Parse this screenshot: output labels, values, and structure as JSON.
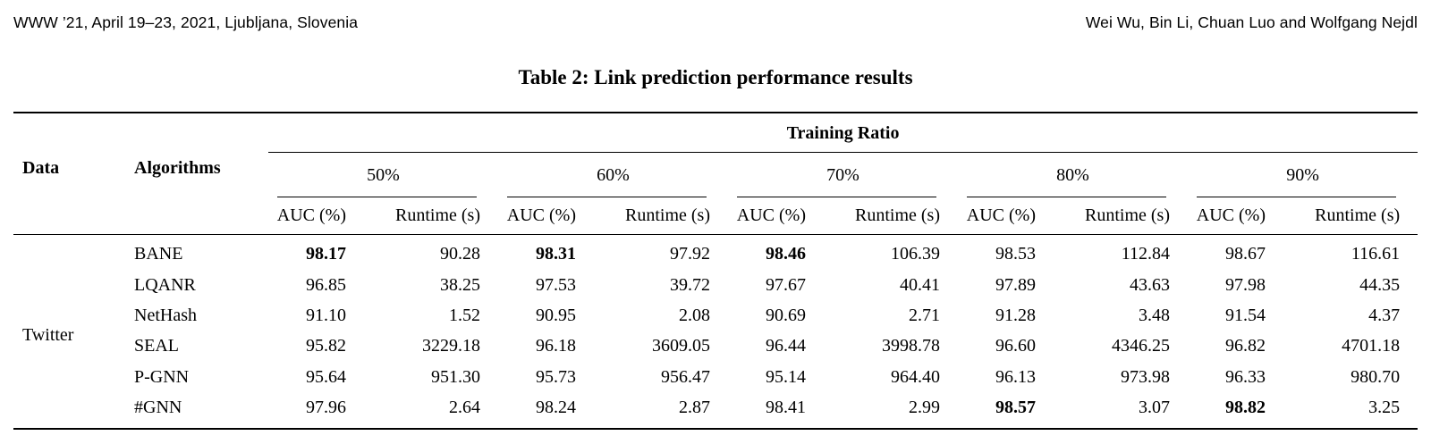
{
  "colors": {
    "text": "#000000",
    "background": "#ffffff",
    "rule": "#000000"
  },
  "page_header": {
    "left": "WWW ’21, April 19–23, 2021, Ljubljana, Slovenia",
    "right": "Wei Wu, Bin Li, Chuan Luo and Wolfgang Nejdl"
  },
  "table": {
    "caption": "Table 2: Link prediction performance results",
    "col_group_header": "Training Ratio",
    "data_header": "Data",
    "algorithms_header": "Algorithms",
    "ratio_headers": [
      "50%",
      "60%",
      "70%",
      "80%",
      "90%"
    ],
    "metric_headers": [
      "AUC (%)",
      "Runtime (s)"
    ],
    "dataset_label": "Twitter",
    "rows": [
      {
        "algorithm": "BANE",
        "cells": [
          "98.17",
          "90.28",
          "98.31",
          "97.92",
          "98.46",
          "106.39",
          "98.53",
          "112.84",
          "98.67",
          "116.61"
        ],
        "bold": [
          true,
          false,
          true,
          false,
          true,
          false,
          false,
          false,
          false,
          false
        ]
      },
      {
        "algorithm": "LQANR",
        "cells": [
          "96.85",
          "38.25",
          "97.53",
          "39.72",
          "97.67",
          "40.41",
          "97.89",
          "43.63",
          "97.98",
          "44.35"
        ],
        "bold": [
          false,
          false,
          false,
          false,
          false,
          false,
          false,
          false,
          false,
          false
        ]
      },
      {
        "algorithm": "NetHash",
        "cells": [
          "91.10",
          "1.52",
          "90.95",
          "2.08",
          "90.69",
          "2.71",
          "91.28",
          "3.48",
          "91.54",
          "4.37"
        ],
        "bold": [
          false,
          false,
          false,
          false,
          false,
          false,
          false,
          false,
          false,
          false
        ]
      },
      {
        "algorithm": "SEAL",
        "cells": [
          "95.82",
          "3229.18",
          "96.18",
          "3609.05",
          "96.44",
          "3998.78",
          "96.60",
          "4346.25",
          "96.82",
          "4701.18"
        ],
        "bold": [
          false,
          false,
          false,
          false,
          false,
          false,
          false,
          false,
          false,
          false
        ]
      },
      {
        "algorithm": "P-GNN",
        "cells": [
          "95.64",
          "951.30",
          "95.73",
          "956.47",
          "95.14",
          "964.40",
          "96.13",
          "973.98",
          "96.33",
          "980.70"
        ],
        "bold": [
          false,
          false,
          false,
          false,
          false,
          false,
          false,
          false,
          false,
          false
        ]
      },
      {
        "algorithm": "#GNN",
        "cells": [
          "97.96",
          "2.64",
          "98.24",
          "2.87",
          "98.41",
          "2.99",
          "98.57",
          "3.07",
          "98.82",
          "3.25"
        ],
        "bold": [
          false,
          false,
          false,
          false,
          false,
          false,
          true,
          false,
          true,
          false
        ]
      }
    ]
  }
}
